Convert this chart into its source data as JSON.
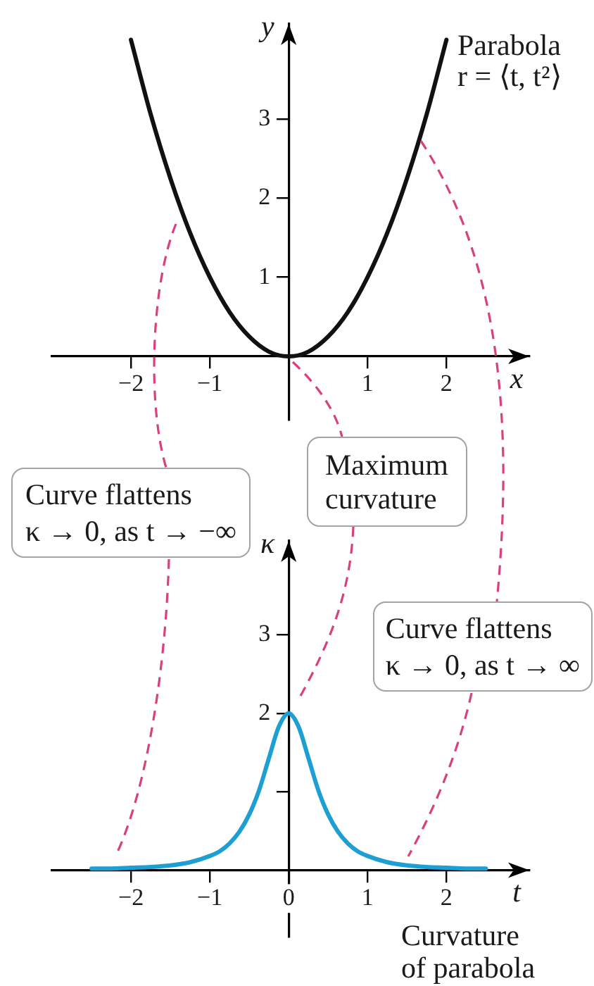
{
  "chart_data": [
    {
      "type": "line",
      "xlabel": "x",
      "ylabel": "y",
      "annotations": [
        "Parabola",
        "r = ⟨t, t²⟩"
      ],
      "x": [
        -2,
        -1.75,
        -1.5,
        -1.25,
        -1,
        -0.75,
        -0.5,
        -0.25,
        0,
        0.25,
        0.5,
        0.75,
        1,
        1.25,
        1.5,
        1.75,
        2
      ],
      "series": [
        {
          "color": "#111111",
          "values": [
            4,
            3.06,
            2.25,
            1.56,
            1,
            0.56,
            0.25,
            0.06,
            0,
            0.06,
            0.25,
            0.56,
            1,
            1.56,
            2.25,
            3.06,
            4
          ]
        }
      ],
      "xlim": [
        -3,
        3.05
      ],
      "ylim": [
        -0.8,
        4.2
      ],
      "xticks": [
        {
          "value": -2,
          "label": "−2"
        },
        {
          "value": -1,
          "label": "−1"
        },
        {
          "value": 1,
          "label": "1"
        },
        {
          "value": 2,
          "label": "2"
        }
      ],
      "yticks": [
        {
          "value": 1,
          "label": "1"
        },
        {
          "value": 2,
          "label": "2"
        },
        {
          "value": 3,
          "label": "3"
        }
      ]
    },
    {
      "type": "line",
      "xlabel": "t",
      "ylabel": "κ",
      "annotations": [
        "Curve flattens\nκ → 0, as t → −∞",
        "Maximum\ncurvature",
        "Curve flattens\nκ → 0, as t → ∞",
        "Curvature\nof parabola"
      ],
      "x": [
        -2.5,
        -2.25,
        -2,
        -1.75,
        -1.5,
        -1.25,
        -1,
        -0.875,
        -0.75,
        -0.625,
        -0.5,
        -0.375,
        -0.25,
        -0.125,
        0,
        0.125,
        0.25,
        0.375,
        0.5,
        0.625,
        0.75,
        0.875,
        1,
        1.25,
        1.5,
        1.75,
        2,
        2.25,
        2.5
      ],
      "series": [
        {
          "color": "#1e9fd4",
          "values": [
            0.02,
            0.02,
            0.03,
            0.04,
            0.06,
            0.1,
            0.18,
            0.24,
            0.34,
            0.49,
            0.71,
            1.02,
            1.43,
            1.83,
            2,
            1.83,
            1.43,
            1.02,
            0.71,
            0.49,
            0.34,
            0.24,
            0.18,
            0.1,
            0.06,
            0.04,
            0.03,
            0.02,
            0.02
          ]
        }
      ],
      "xlim": [
        -3,
        3.05
      ],
      "ylim": [
        -0.85,
        4.2
      ],
      "xticks": [
        {
          "value": -2,
          "label": "−2"
        },
        {
          "value": -1,
          "label": "−1"
        },
        {
          "value": 0,
          "label": "0"
        },
        1,
        2
      ],
      "yticks": [
        {
          "value": 1,
          "label": null
        },
        2,
        3
      ]
    }
  ]
}
